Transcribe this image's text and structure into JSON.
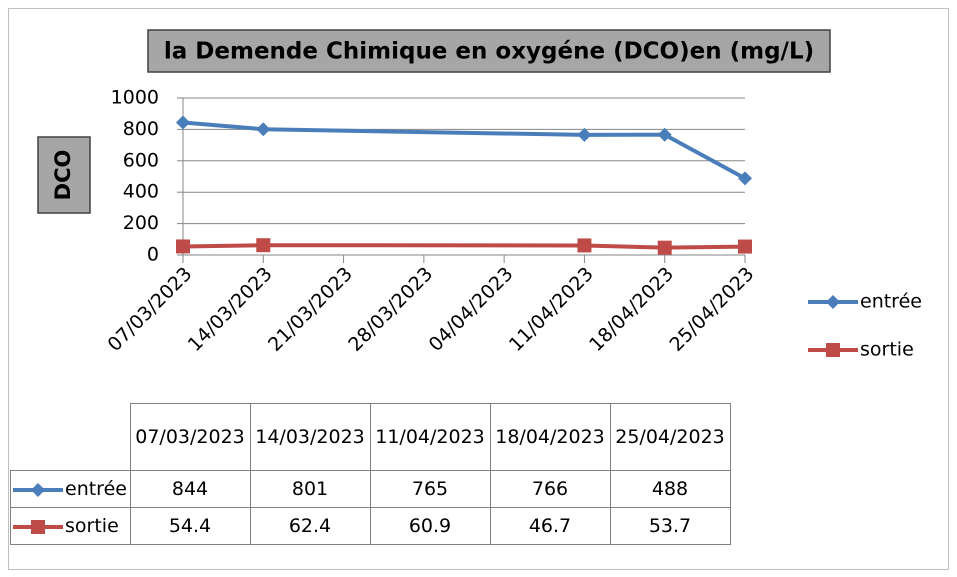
{
  "chart_data": {
    "type": "line",
    "title": "la Demende Chimique en oxygéne (DCO)en (mg/L)",
    "y_label": "DCO",
    "x": [
      "07/03/2023",
      "14/03/2023",
      "11/04/2023",
      "18/04/2023",
      "25/04/2023"
    ],
    "xlim": [
      "07/03/2023",
      "25/04/2023"
    ],
    "xticks": [
      "07/03/2023",
      "14/03/2023",
      "21/03/2023",
      "28/03/2023",
      "04/04/2023",
      "11/04/2023",
      "18/04/2023",
      "25/04/2023"
    ],
    "ylim": [
      0,
      1000
    ],
    "yticks": [
      0,
      200,
      400,
      600,
      800,
      1000
    ],
    "grid": true,
    "legend": "right",
    "series": [
      {
        "name": "entrée",
        "color": "#4a7ebb",
        "marker": "diamond",
        "values": [
          844,
          801,
          765,
          766,
          488
        ]
      },
      {
        "name": "sortie",
        "color": "#be4b48",
        "marker": "square",
        "values": [
          54.4,
          62.4,
          60.9,
          46.7,
          53.7
        ]
      }
    ]
  }
}
